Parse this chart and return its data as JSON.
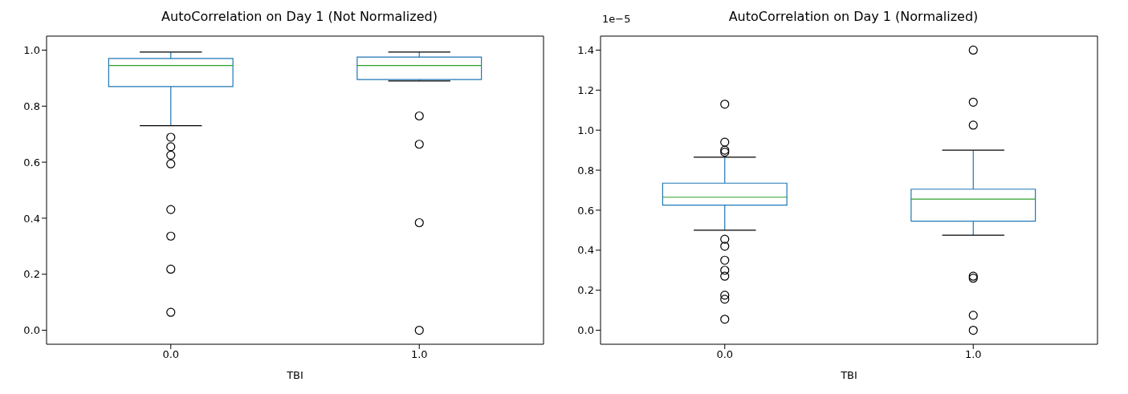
{
  "chart_data": [
    {
      "type": "box",
      "title": "AutoCorrelation on Day 1 (Not Normalized)",
      "xlabel": "TBI",
      "categories": [
        "0.0",
        "1.0"
      ],
      "ylim": [
        -0.05,
        1.05
      ],
      "yticks": [
        {
          "value": 0,
          "label": "0.0"
        },
        {
          "value": 0.2,
          "label": "0.2"
        },
        {
          "value": 0.4,
          "label": "0.4"
        },
        {
          "value": 0.6,
          "label": "0.6"
        },
        {
          "value": 0.8,
          "label": "0.8"
        },
        {
          "value": 1,
          "label": "1.0"
        }
      ],
      "series": [
        {
          "color": "#1f77b4",
          "boxes": [
            {
              "low": 0.73,
              "q1": 0.87,
              "median": 0.945,
              "q3": 0.97,
              "high": 0.993,
              "outliers": [
                0.689,
                0.655,
                0.625,
                0.594,
                0.431,
                0.336,
                0.218,
                0.064
              ]
            },
            {
              "low": 0.89,
              "q1": 0.895,
              "median": 0.945,
              "q3": 0.975,
              "high": 0.993,
              "outliers": [
                0.765,
                0.664,
                0.384,
                0.0
              ]
            }
          ]
        }
      ]
    },
    {
      "type": "box",
      "title": "AutoCorrelation on Day 1 (Normalized)",
      "xlabel": "TBI",
      "categories": [
        "0.0",
        "1.0"
      ],
      "ylim": [
        -0.07,
        1.47
      ],
      "yticks": [
        {
          "value": 0,
          "label": "0.0"
        },
        {
          "value": 0.2,
          "label": "0.2"
        },
        {
          "value": 0.4,
          "label": "0.4"
        },
        {
          "value": 0.6,
          "label": "0.6"
        },
        {
          "value": 0.8,
          "label": "0.8"
        },
        {
          "value": 1,
          "label": "1.0"
        },
        {
          "value": 1.2,
          "label": "1.2"
        },
        {
          "value": 1.4,
          "label": "1.4"
        }
      ],
      "annotations": [
        "1e−5"
      ],
      "series": [
        {
          "color": "#1f77b4",
          "boxes": [
            {
              "low": 0.5,
              "q1": 0.625,
              "median": 0.665,
              "q3": 0.735,
              "high": 0.865,
              "outliers": [
                1.13,
                0.94,
                0.9,
                0.89,
                0.455,
                0.42,
                0.35,
                0.3,
                0.27,
                0.175,
                0.155,
                0.055
              ]
            },
            {
              "low": 0.475,
              "q1": 0.545,
              "median": 0.655,
              "q3": 0.705,
              "high": 0.9,
              "outliers": [
                1.4,
                1.14,
                1.025,
                0.27,
                0.26,
                0.075,
                0.0
              ]
            }
          ]
        }
      ]
    }
  ]
}
